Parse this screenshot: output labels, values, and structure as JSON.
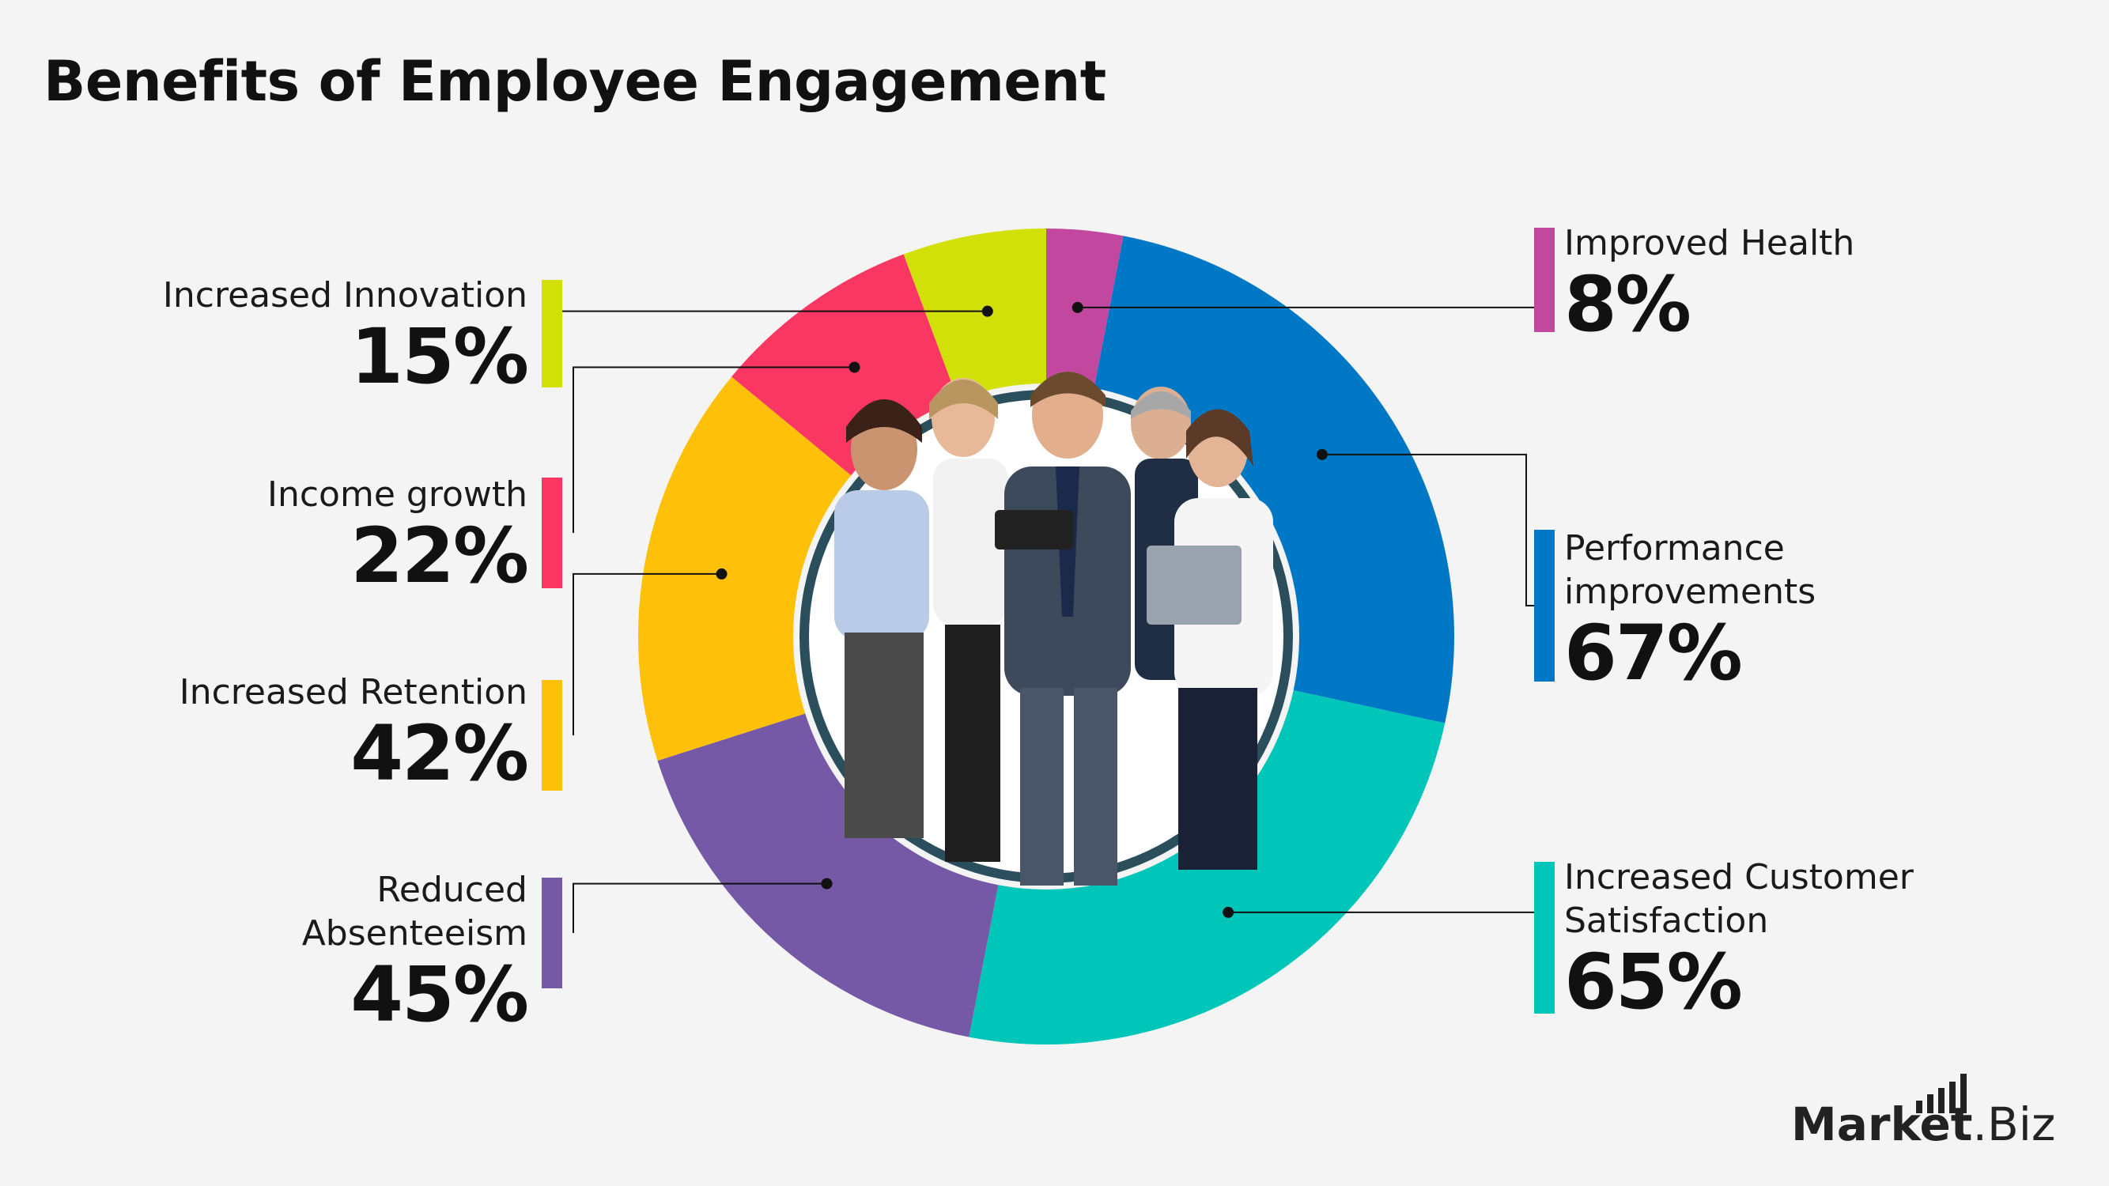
{
  "title": "Benefits of Employee Engagement",
  "chart_data": {
    "type": "pie",
    "title": "Benefits of Employee Engagement",
    "segments": [
      {
        "name": "Improved Health",
        "value": 8,
        "label": "8%",
        "color": "#c1489e",
        "side": "right"
      },
      {
        "name": "Performance improvements",
        "value": 67,
        "label": "67%",
        "color": "#0078c6",
        "side": "right"
      },
      {
        "name": "Increased Customer Satisfaction",
        "value": 65,
        "label": "65%",
        "color": "#00c6b9",
        "side": "right"
      },
      {
        "name": "Reduced Absenteeism",
        "value": 45,
        "label": "45%",
        "color": "#7559a6",
        "side": "left"
      },
      {
        "name": "Increased Retention",
        "value": 42,
        "label": "42%",
        "color": "#fec008",
        "side": "left"
      },
      {
        "name": "Income growth",
        "value": 22,
        "label": "22%",
        "color": "#f93762",
        "side": "left"
      },
      {
        "name": "Increased Innovation",
        "value": 15,
        "label": "15%",
        "color": "#d2e00a",
        "side": "left"
      }
    ]
  },
  "center_photo": {
    "icon": "business-team-photo"
  },
  "logo": {
    "part1": "Market",
    "part2": ".Biz",
    "icon": "bar-chart-logo-icon"
  }
}
